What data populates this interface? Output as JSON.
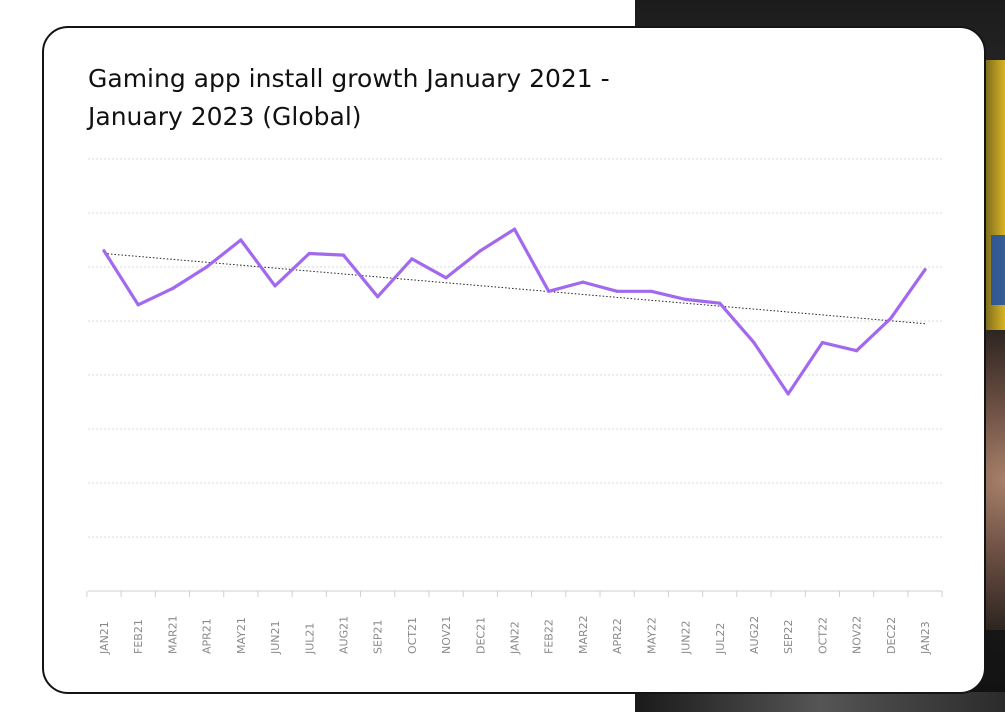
{
  "chart_data": {
    "type": "line",
    "title": "Gaming app install growth January 2021 - January 2023 (Global)",
    "xlabel": "",
    "ylabel": "",
    "categories": [
      "JAN21",
      "FEB21",
      "MAR21",
      "APR21",
      "MAY21",
      "JUN21",
      "JUL21",
      "AUG21",
      "SEP21",
      "OCT21",
      "NOV21",
      "DEC21",
      "JAN22",
      "FEB22",
      "MAR22",
      "APR22",
      "MAY22",
      "JUN22",
      "JUL22",
      "AUG22",
      "SEP22",
      "OCT22",
      "NOV22",
      "DEC22",
      "JAN23"
    ],
    "series": [
      {
        "values": [
          6.3,
          5.3,
          5.6,
          6.0,
          6.5,
          5.65,
          6.25,
          6.22,
          5.45,
          6.15,
          5.8,
          6.3,
          6.7,
          5.55,
          5.72,
          5.55,
          5.55,
          5.4,
          5.33,
          4.6,
          3.65,
          4.6,
          4.45,
          5.05,
          5.95
        ],
        "color": "#a268ee"
      }
    ],
    "trendline": {
      "start": 6.25,
      "end": 4.95,
      "color": "#222222",
      "style": "dotted"
    },
    "ylim": [
      0,
      8
    ],
    "grid": true,
    "legend": "none"
  }
}
